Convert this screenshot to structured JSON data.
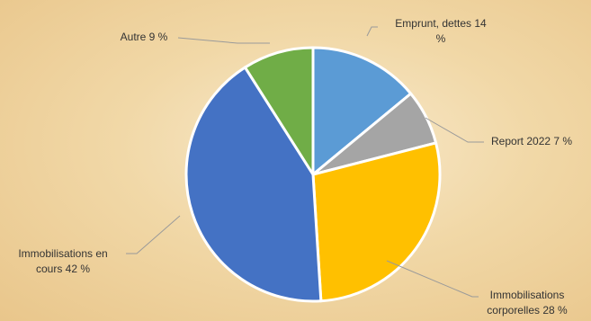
{
  "chart_data": {
    "type": "pie",
    "title": "",
    "slices": [
      {
        "label": "Emprunt, dettes",
        "value": 14,
        "color": "#5b9bd5"
      },
      {
        "label": "Report 2022",
        "value": 7,
        "color": "#a5a5a5"
      },
      {
        "label": "Immobilisations corporelles",
        "value": 28,
        "color": "#ffc000"
      },
      {
        "label": "Immobilisations en cours",
        "value": 42,
        "color": "#4472c4"
      },
      {
        "label": "Autre",
        "value": 9,
        "color": "#70ad47"
      }
    ],
    "data_labels": [
      [
        "Emprunt, dettes 14",
        "%"
      ],
      [
        "Report 2022 7 %"
      ],
      [
        "Immobilisations",
        "corporelles 28 %"
      ],
      [
        "Immobilisations en",
        "cours 42 %"
      ],
      [
        "Autre 9 %"
      ]
    ],
    "start_angle": "12 o'clock",
    "direction": "clockwise",
    "legend": "none"
  }
}
